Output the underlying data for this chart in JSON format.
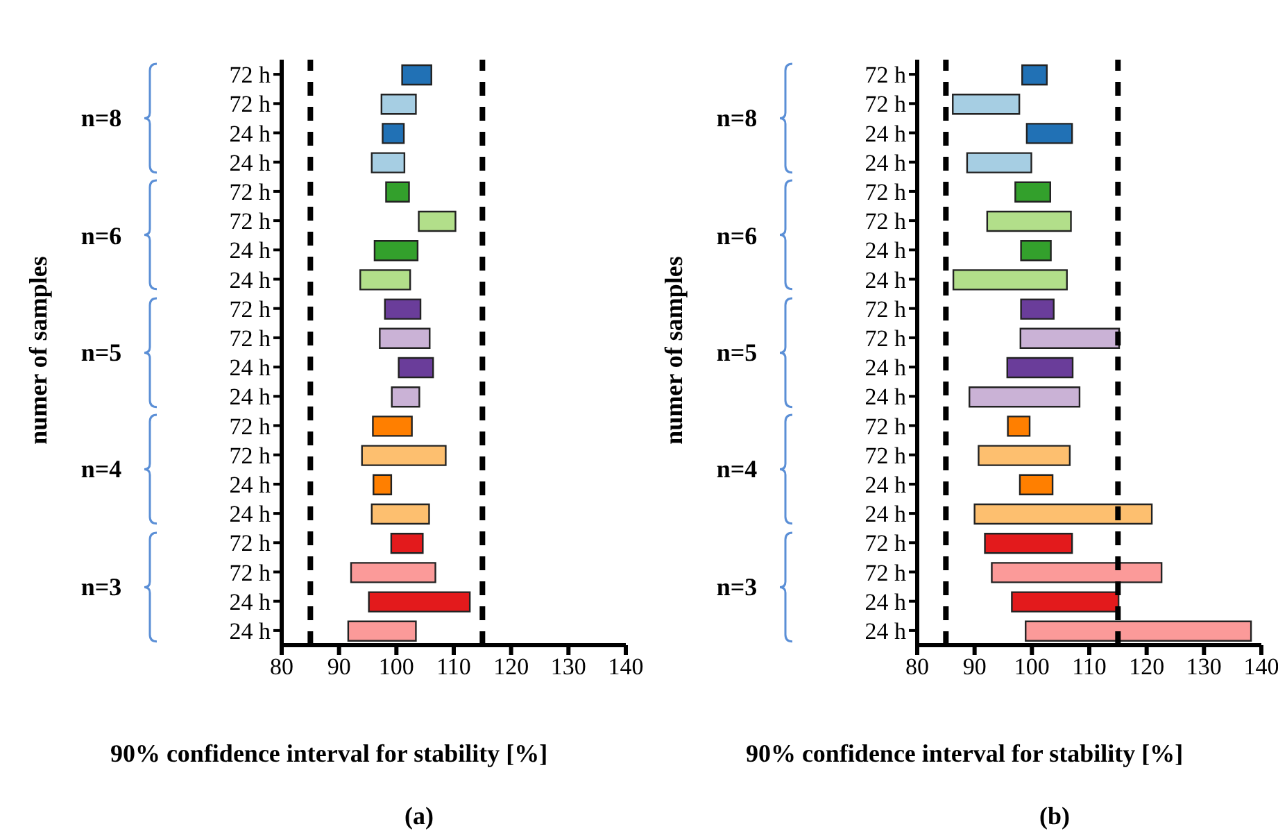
{
  "chart_data": [
    {
      "type": "bar",
      "orientation": "horizontal",
      "title": "(a)",
      "xlabel": "90% confidence interval for stability [%]",
      "ylabel": "numer of samples",
      "categories": [
        "72 h",
        "72 h",
        "24 h",
        "24 h",
        "72 h",
        "72 h",
        "24 h",
        "24 h",
        "72 h",
        "72 h",
        "24 h",
        "24 h",
        "72 h",
        "72 h",
        "24 h",
        "24 h",
        "72 h",
        "72 h",
        "24 h",
        "24 h"
      ],
      "base": [
        101,
        97.4,
        97.6,
        95.7,
        98.2,
        103.9,
        96.2,
        93.7,
        98,
        97.1,
        100.4,
        99.2,
        95.9,
        94,
        96,
        95.7,
        99.1,
        92.1,
        95.2,
        91.6
      ],
      "values": [
        5.1,
        6,
        3.7,
        5.7,
        4,
        6.4,
        7.5,
        8.7,
        6.2,
        8.7,
        6,
        4.8,
        6.8,
        14.6,
        3.1,
        10,
        5.5,
        14.7,
        17.6,
        11.8
      ],
      "colors": [
        "#2171b5",
        "#a6cee3",
        "#2171b5",
        "#a6cee3",
        "#33a02c",
        "#b2df8a",
        "#33a02c",
        "#b2df8a",
        "#6a3d9a",
        "#cab2d6",
        "#6a3d9a",
        "#cab2d6",
        "#ff7f00",
        "#fdbf6f",
        "#ff7f00",
        "#fdbf6f",
        "#e31a1c",
        "#fb9a99",
        "#e31a1c",
        "#fb9a99"
      ],
      "xlim": [
        80,
        140
      ],
      "xticks": [
        80,
        90,
        100,
        110,
        120,
        130,
        140
      ],
      "ref_lines": [
        {
          "axis": "x",
          "value": 85,
          "color": "#000000",
          "line_style": "dashed"
        },
        {
          "axis": "x",
          "value": 115,
          "color": "#000000",
          "line_style": "dashed"
        }
      ],
      "annotations": [
        "n=8",
        "n=6",
        "n=5",
        "n=4",
        "n=3"
      ]
    },
    {
      "type": "bar",
      "orientation": "horizontal",
      "title": "(b)",
      "xlabel": "90% confidence interval for stability [%]",
      "ylabel": "numer of samples",
      "categories": [
        "72 h",
        "72 h",
        "24 h",
        "24 h",
        "72 h",
        "72 h",
        "24 h",
        "24 h",
        "72 h",
        "72 h",
        "24 h",
        "24 h",
        "72 h",
        "72 h",
        "24 h",
        "24 h",
        "72 h",
        "72 h",
        "24 h",
        "24 h"
      ],
      "base": [
        98.3,
        86.2,
        99.1,
        88.7,
        97.1,
        92.2,
        98.1,
        86.3,
        98.1,
        98,
        95.7,
        89.1,
        95.8,
        90.7,
        97.9,
        90,
        91.8,
        93,
        96.5,
        98.9
      ],
      "values": [
        4.3,
        11.6,
        7.9,
        11.2,
        6.1,
        14.6,
        5.2,
        19.8,
        5.7,
        17.2,
        11.4,
        19.2,
        3.8,
        15.9,
        5.7,
        30.9,
        15.2,
        29.6,
        18.6,
        39.3
      ],
      "colors": [
        "#2171b5",
        "#a6cee3",
        "#2171b5",
        "#a6cee3",
        "#33a02c",
        "#b2df8a",
        "#33a02c",
        "#b2df8a",
        "#6a3d9a",
        "#cab2d6",
        "#6a3d9a",
        "#cab2d6",
        "#ff7f00",
        "#fdbf6f",
        "#ff7f00",
        "#fdbf6f",
        "#e31a1c",
        "#fb9a99",
        "#e31a1c",
        "#fb9a99"
      ],
      "xlim": [
        80,
        140
      ],
      "xticks": [
        80,
        90,
        100,
        110,
        120,
        130,
        140
      ],
      "ref_lines": [
        {
          "axis": "x",
          "value": 85,
          "color": "#000000",
          "line_style": "dashed"
        },
        {
          "axis": "x",
          "value": 115,
          "color": "#000000",
          "line_style": "dashed"
        }
      ],
      "annotations": [
        "n=8",
        "n=6",
        "n=5",
        "n=4",
        "n=3"
      ]
    }
  ]
}
